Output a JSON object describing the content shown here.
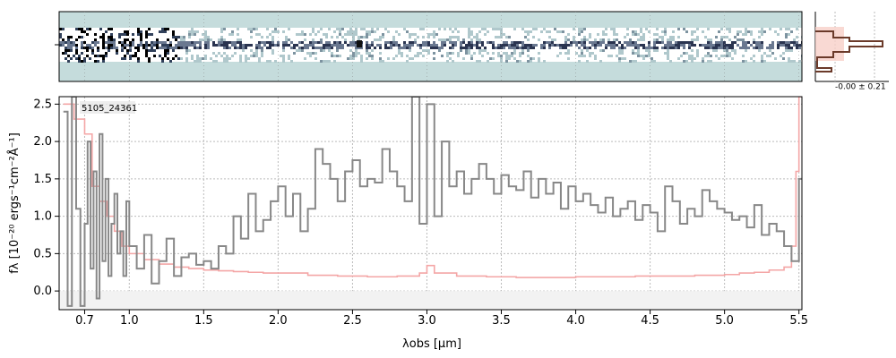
{
  "chart_data": {
    "type": "line",
    "object_label": "5105_24361",
    "xlabel": "λobs [μm]",
    "ylabel": "fλ [10⁻²⁰ ergs⁻¹cm⁻²Å⁻¹]",
    "x_scale": "reciprocal",
    "xlim": [
      0.58,
      5.52
    ],
    "ylim": [
      -0.25,
      2.6
    ],
    "grid": true,
    "x_ticks": [
      "0.7",
      "1.0",
      "1.5",
      "2.0",
      "2.5",
      "3.0",
      "3.5",
      "4.0",
      "4.5",
      "5.0",
      "5.5"
    ],
    "y_ticks": [
      "0.0",
      "0.5",
      "1.0",
      "1.5",
      "2.0",
      "2.5"
    ],
    "offset_label": "-0.00 ± 0.21",
    "series": [
      {
        "role": "flux",
        "color": "#888888",
        "x": [
          0.6,
          0.62,
          0.64,
          0.66,
          0.68,
          0.7,
          0.72,
          0.74,
          0.76,
          0.78,
          0.8,
          0.82,
          0.84,
          0.86,
          0.88,
          0.9,
          0.92,
          0.94,
          0.96,
          0.98,
          1.0,
          1.05,
          1.1,
          1.15,
          1.2,
          1.25,
          1.3,
          1.35,
          1.4,
          1.45,
          1.5,
          1.55,
          1.6,
          1.65,
          1.7,
          1.75,
          1.8,
          1.85,
          1.9,
          1.95,
          2.0,
          2.05,
          2.1,
          2.15,
          2.2,
          2.25,
          2.3,
          2.35,
          2.4,
          2.45,
          2.5,
          2.55,
          2.6,
          2.65,
          2.7,
          2.75,
          2.8,
          2.85,
          2.9,
          2.95,
          3.0,
          3.05,
          3.1,
          3.15,
          3.2,
          3.25,
          3.3,
          3.35,
          3.4,
          3.45,
          3.5,
          3.55,
          3.6,
          3.65,
          3.7,
          3.75,
          3.8,
          3.85,
          3.9,
          3.95,
          4.0,
          4.05,
          4.1,
          4.15,
          4.2,
          4.25,
          4.3,
          4.35,
          4.4,
          4.45,
          4.5,
          4.55,
          4.6,
          4.65,
          4.7,
          4.75,
          4.8,
          4.85,
          4.9,
          4.95,
          5.0,
          5.05,
          5.1,
          5.15,
          5.2,
          5.25,
          5.3,
          5.35,
          5.4,
          5.45,
          5.5
        ],
        "y": [
          2.4,
          -0.2,
          2.6,
          1.1,
          -0.2,
          0.9,
          2.0,
          0.3,
          1.6,
          -0.1,
          2.1,
          0.4,
          1.5,
          0.2,
          0.9,
          1.3,
          0.5,
          0.8,
          0.2,
          1.2,
          0.6,
          0.3,
          0.75,
          0.1,
          0.4,
          0.7,
          0.2,
          0.45,
          0.5,
          0.35,
          0.4,
          0.3,
          0.6,
          0.5,
          1.0,
          0.7,
          1.3,
          0.8,
          0.95,
          1.2,
          1.4,
          1.0,
          1.3,
          0.8,
          1.1,
          1.9,
          1.7,
          1.5,
          1.2,
          1.6,
          1.75,
          1.4,
          1.5,
          1.45,
          1.9,
          1.6,
          1.4,
          1.2,
          2.6,
          0.9,
          2.5,
          1.0,
          2.0,
          1.4,
          1.6,
          1.3,
          1.5,
          1.7,
          1.5,
          1.3,
          1.55,
          1.4,
          1.35,
          1.6,
          1.25,
          1.5,
          1.3,
          1.45,
          1.1,
          1.4,
          1.2,
          1.3,
          1.15,
          1.05,
          1.25,
          1.0,
          1.1,
          1.2,
          0.95,
          1.15,
          1.05,
          0.8,
          1.4,
          1.2,
          0.9,
          1.1,
          1.0,
          1.35,
          1.2,
          1.1,
          1.05,
          0.95,
          1.0,
          0.85,
          1.15,
          0.75,
          0.9,
          0.8,
          0.6,
          0.4,
          1.5
        ]
      },
      {
        "role": "error",
        "color": "#f4a6a6",
        "x": [
          0.6,
          0.65,
          0.7,
          0.75,
          0.8,
          0.85,
          0.9,
          0.95,
          1.0,
          1.1,
          1.2,
          1.3,
          1.4,
          1.5,
          1.6,
          1.7,
          1.8,
          1.9,
          2.0,
          2.2,
          2.4,
          2.6,
          2.8,
          2.95,
          3.0,
          3.05,
          3.2,
          3.4,
          3.6,
          3.8,
          4.0,
          4.2,
          4.4,
          4.6,
          4.8,
          5.0,
          5.1,
          5.2,
          5.3,
          5.4,
          5.45,
          5.48,
          5.5
        ],
        "y": [
          2.5,
          2.3,
          2.1,
          1.4,
          1.2,
          1.0,
          0.8,
          0.6,
          0.5,
          0.42,
          0.36,
          0.32,
          0.3,
          0.28,
          0.27,
          0.26,
          0.25,
          0.24,
          0.24,
          0.21,
          0.2,
          0.19,
          0.2,
          0.24,
          0.34,
          0.24,
          0.2,
          0.19,
          0.18,
          0.18,
          0.19,
          0.19,
          0.2,
          0.2,
          0.21,
          0.22,
          0.24,
          0.25,
          0.28,
          0.32,
          0.6,
          1.6,
          2.6
        ]
      }
    ]
  }
}
